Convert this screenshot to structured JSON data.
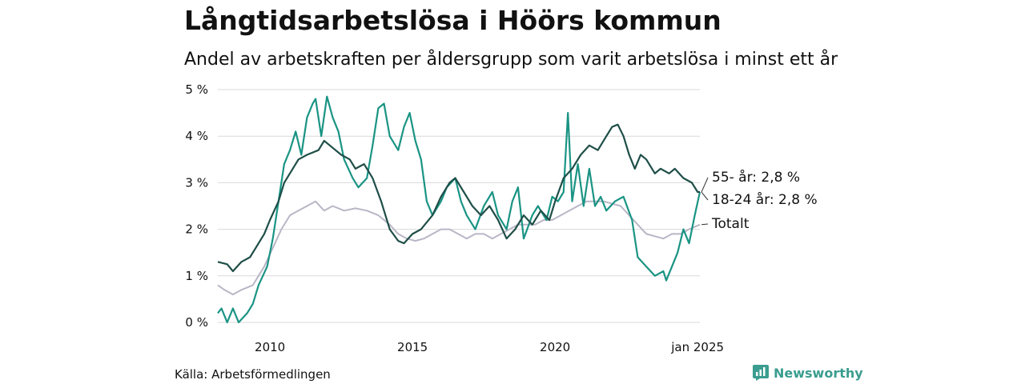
{
  "title": "Långtidsarbetslösa i Höörs kommun",
  "subtitle": "Andel av arbetskraften per åldersgrupp som varit arbetslösa i minst ett år",
  "source": "Källa: Arbetsförmedlingen",
  "brand": {
    "name": "Newsworthy",
    "icon": "bar-chart-logo-icon"
  },
  "colors": {
    "s55": "#1f4e48",
    "s1824": "#1a9484",
    "total": "#b9b6c6",
    "grid": "#d9d9d9"
  },
  "chart_data": {
    "type": "line",
    "xlim": [
      2008.17,
      2025.08
    ],
    "ylim": [
      0,
      5
    ],
    "y_ticks": [
      {
        "v": 0,
        "label": "0 %"
      },
      {
        "v": 1,
        "label": "1 %"
      },
      {
        "v": 2,
        "label": "2 %"
      },
      {
        "v": 3,
        "label": "3 %"
      },
      {
        "v": 4,
        "label": "4 %"
      },
      {
        "v": 5,
        "label": "5 %"
      }
    ],
    "x_ticks": [
      {
        "v": 2010,
        "label": "2010"
      },
      {
        "v": 2015,
        "label": "2015"
      },
      {
        "v": 2020,
        "label": "2020"
      },
      {
        "v": 2025.0,
        "label": "jan 2025"
      }
    ],
    "grid": "horizontal",
    "series": [
      {
        "key": "s55",
        "end_label": "55- år: 2,8 %",
        "points": [
          [
            2008.17,
            1.3
          ],
          [
            2008.5,
            1.25
          ],
          [
            2008.7,
            1.1
          ],
          [
            2009.0,
            1.3
          ],
          [
            2009.3,
            1.4
          ],
          [
            2009.5,
            1.6
          ],
          [
            2009.8,
            1.9
          ],
          [
            2010.0,
            2.2
          ],
          [
            2010.3,
            2.6
          ],
          [
            2010.5,
            3.0
          ],
          [
            2010.8,
            3.3
          ],
          [
            2011.0,
            3.5
          ],
          [
            2011.3,
            3.6
          ],
          [
            2011.7,
            3.7
          ],
          [
            2011.9,
            3.9
          ],
          [
            2012.1,
            3.8
          ],
          [
            2012.5,
            3.6
          ],
          [
            2012.8,
            3.5
          ],
          [
            2013.0,
            3.3
          ],
          [
            2013.3,
            3.4
          ],
          [
            2013.6,
            3.1
          ],
          [
            2013.9,
            2.6
          ],
          [
            2014.2,
            2.0
          ],
          [
            2014.5,
            1.75
          ],
          [
            2014.7,
            1.7
          ],
          [
            2015.0,
            1.9
          ],
          [
            2015.3,
            2.0
          ],
          [
            2015.7,
            2.3
          ],
          [
            2016.0,
            2.7
          ],
          [
            2016.3,
            3.0
          ],
          [
            2016.5,
            3.1
          ],
          [
            2016.8,
            2.8
          ],
          [
            2017.1,
            2.5
          ],
          [
            2017.4,
            2.3
          ],
          [
            2017.7,
            2.5
          ],
          [
            2018.0,
            2.2
          ],
          [
            2018.3,
            1.8
          ],
          [
            2018.6,
            2.0
          ],
          [
            2018.9,
            2.3
          ],
          [
            2019.2,
            2.1
          ],
          [
            2019.5,
            2.4
          ],
          [
            2019.8,
            2.2
          ],
          [
            2020.0,
            2.6
          ],
          [
            2020.3,
            3.1
          ],
          [
            2020.6,
            3.3
          ],
          [
            2020.9,
            3.6
          ],
          [
            2021.2,
            3.8
          ],
          [
            2021.5,
            3.7
          ],
          [
            2021.8,
            4.0
          ],
          [
            2022.0,
            4.2
          ],
          [
            2022.2,
            4.25
          ],
          [
            2022.4,
            4.0
          ],
          [
            2022.6,
            3.6
          ],
          [
            2022.8,
            3.3
          ],
          [
            2023.0,
            3.6
          ],
          [
            2023.2,
            3.5
          ],
          [
            2023.5,
            3.2
          ],
          [
            2023.7,
            3.3
          ],
          [
            2024.0,
            3.2
          ],
          [
            2024.2,
            3.3
          ],
          [
            2024.5,
            3.1
          ],
          [
            2024.8,
            3.0
          ],
          [
            2025.0,
            2.8
          ],
          [
            2025.08,
            2.8
          ]
        ]
      },
      {
        "key": "s1824",
        "end_label": "18-24 år: 2,8 %",
        "points": [
          [
            2008.17,
            0.2
          ],
          [
            2008.3,
            0.3
          ],
          [
            2008.5,
            0.0
          ],
          [
            2008.7,
            0.3
          ],
          [
            2008.9,
            0.0
          ],
          [
            2009.2,
            0.2
          ],
          [
            2009.4,
            0.4
          ],
          [
            2009.6,
            0.8
          ],
          [
            2009.9,
            1.2
          ],
          [
            2010.1,
            1.8
          ],
          [
            2010.3,
            2.6
          ],
          [
            2010.5,
            3.4
          ],
          [
            2010.7,
            3.7
          ],
          [
            2010.9,
            4.1
          ],
          [
            2011.1,
            3.6
          ],
          [
            2011.3,
            4.4
          ],
          [
            2011.5,
            4.7
          ],
          [
            2011.6,
            4.8
          ],
          [
            2011.8,
            4.0
          ],
          [
            2012.0,
            4.85
          ],
          [
            2012.2,
            4.4
          ],
          [
            2012.4,
            4.1
          ],
          [
            2012.6,
            3.5
          ],
          [
            2012.9,
            3.1
          ],
          [
            2013.1,
            2.9
          ],
          [
            2013.4,
            3.1
          ],
          [
            2013.6,
            3.8
          ],
          [
            2013.8,
            4.6
          ],
          [
            2014.0,
            4.7
          ],
          [
            2014.2,
            4.0
          ],
          [
            2014.5,
            3.7
          ],
          [
            2014.7,
            4.2
          ],
          [
            2014.9,
            4.5
          ],
          [
            2015.1,
            3.9
          ],
          [
            2015.3,
            3.5
          ],
          [
            2015.5,
            2.6
          ],
          [
            2015.7,
            2.3
          ],
          [
            2016.0,
            2.6
          ],
          [
            2016.2,
            2.9
          ],
          [
            2016.5,
            3.1
          ],
          [
            2016.7,
            2.6
          ],
          [
            2016.9,
            2.3
          ],
          [
            2017.2,
            2.0
          ],
          [
            2017.5,
            2.5
          ],
          [
            2017.8,
            2.8
          ],
          [
            2018.0,
            2.3
          ],
          [
            2018.3,
            2.0
          ],
          [
            2018.5,
            2.6
          ],
          [
            2018.7,
            2.9
          ],
          [
            2018.9,
            1.8
          ],
          [
            2019.2,
            2.3
          ],
          [
            2019.4,
            2.5
          ],
          [
            2019.7,
            2.2
          ],
          [
            2019.9,
            2.7
          ],
          [
            2020.1,
            2.6
          ],
          [
            2020.3,
            2.8
          ],
          [
            2020.45,
            4.5
          ],
          [
            2020.6,
            2.6
          ],
          [
            2020.8,
            3.4
          ],
          [
            2021.0,
            2.5
          ],
          [
            2021.2,
            3.3
          ],
          [
            2021.4,
            2.5
          ],
          [
            2021.6,
            2.7
          ],
          [
            2021.8,
            2.4
          ],
          [
            2022.1,
            2.6
          ],
          [
            2022.4,
            2.7
          ],
          [
            2022.7,
            2.2
          ],
          [
            2022.9,
            1.4
          ],
          [
            2023.2,
            1.2
          ],
          [
            2023.5,
            1.0
          ],
          [
            2023.8,
            1.1
          ],
          [
            2023.9,
            0.9
          ],
          [
            2024.1,
            1.2
          ],
          [
            2024.3,
            1.5
          ],
          [
            2024.5,
            2.0
          ],
          [
            2024.7,
            1.7
          ],
          [
            2024.9,
            2.3
          ],
          [
            2025.08,
            2.8
          ]
        ]
      },
      {
        "key": "total",
        "end_label": "Totalt",
        "points": [
          [
            2008.17,
            0.8
          ],
          [
            2008.4,
            0.7
          ],
          [
            2008.7,
            0.6
          ],
          [
            2009.0,
            0.7
          ],
          [
            2009.4,
            0.8
          ],
          [
            2009.8,
            1.2
          ],
          [
            2010.1,
            1.6
          ],
          [
            2010.4,
            2.0
          ],
          [
            2010.7,
            2.3
          ],
          [
            2011.0,
            2.4
          ],
          [
            2011.3,
            2.5
          ],
          [
            2011.6,
            2.6
          ],
          [
            2011.9,
            2.4
          ],
          [
            2012.2,
            2.5
          ],
          [
            2012.6,
            2.4
          ],
          [
            2013.0,
            2.45
          ],
          [
            2013.4,
            2.4
          ],
          [
            2013.8,
            2.3
          ],
          [
            2014.2,
            2.1
          ],
          [
            2014.5,
            1.9
          ],
          [
            2014.8,
            1.8
          ],
          [
            2015.1,
            1.75
          ],
          [
            2015.4,
            1.8
          ],
          [
            2015.7,
            1.9
          ],
          [
            2016.0,
            2.0
          ],
          [
            2016.3,
            2.0
          ],
          [
            2016.6,
            1.9
          ],
          [
            2016.9,
            1.8
          ],
          [
            2017.2,
            1.9
          ],
          [
            2017.5,
            1.9
          ],
          [
            2017.8,
            1.8
          ],
          [
            2018.1,
            1.9
          ],
          [
            2018.4,
            2.0
          ],
          [
            2018.7,
            2.1
          ],
          [
            2019.0,
            2.1
          ],
          [
            2019.3,
            2.1
          ],
          [
            2019.6,
            2.2
          ],
          [
            2019.9,
            2.2
          ],
          [
            2020.2,
            2.3
          ],
          [
            2020.5,
            2.4
          ],
          [
            2020.8,
            2.5
          ],
          [
            2021.1,
            2.6
          ],
          [
            2021.4,
            2.6
          ],
          [
            2021.7,
            2.6
          ],
          [
            2022.0,
            2.55
          ],
          [
            2022.3,
            2.5
          ],
          [
            2022.6,
            2.3
          ],
          [
            2022.9,
            2.1
          ],
          [
            2023.2,
            1.9
          ],
          [
            2023.5,
            1.85
          ],
          [
            2023.8,
            1.8
          ],
          [
            2024.1,
            1.9
          ],
          [
            2024.4,
            1.9
          ],
          [
            2024.7,
            2.0
          ],
          [
            2025.08,
            2.1
          ]
        ]
      }
    ]
  }
}
